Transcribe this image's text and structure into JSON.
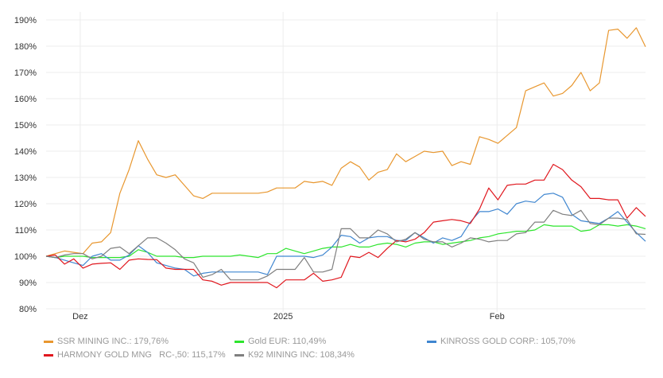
{
  "chart_data": {
    "type": "line",
    "xlabel": "",
    "ylabel": "",
    "ylim": [
      80,
      190
    ],
    "y_ticks": [
      "80%",
      "90%",
      "100%",
      "110%",
      "120%",
      "130%",
      "140%",
      "150%",
      "160%",
      "170%",
      "180%",
      "190%"
    ],
    "y_tick_values": [
      80,
      90,
      100,
      110,
      120,
      130,
      140,
      150,
      160,
      170,
      180,
      190
    ],
    "x_ticks": [
      {
        "label": "Dez",
        "index": 3.7
      },
      {
        "label": "2025",
        "index": 25.7
      },
      {
        "label": "Feb",
        "index": 48.9
      }
    ],
    "grid": true,
    "legend_position": "bottom",
    "series": [
      {
        "name": "SSR MINING INC.",
        "legend": "SSR MINING INC.: 179,76%",
        "color": "#e8972f",
        "values": [
          100,
          101,
          102,
          101.5,
          101,
          105,
          105.5,
          109,
          124,
          133,
          144,
          137,
          131,
          130,
          131,
          127,
          123,
          122,
          124,
          124,
          124,
          124,
          124,
          124,
          124.5,
          126,
          126,
          126,
          128.5,
          128,
          128.5,
          127,
          133.5,
          136,
          134,
          129,
          132,
          133,
          139,
          136,
          138,
          140,
          139.5,
          140,
          134.5,
          136,
          135,
          145.5,
          144.5,
          143,
          146,
          149,
          163,
          164.5,
          166,
          161,
          162,
          165,
          170,
          163,
          166,
          186,
          186.5,
          183,
          187,
          179.76
        ]
      },
      {
        "name": "Gold EUR",
        "legend": "Gold EUR: 110,49%",
        "color": "#2de52d",
        "values": [
          100,
          99.5,
          100,
          100,
          100,
          99.5,
          99.5,
          99.5,
          99.5,
          100,
          102.5,
          101.5,
          100,
          100,
          100,
          99.5,
          99.5,
          100,
          100,
          100,
          100,
          100.5,
          100,
          99.5,
          101,
          101,
          103,
          102,
          101,
          102,
          103,
          103.5,
          103.5,
          104.5,
          103.5,
          103.5,
          104.5,
          105,
          104.5,
          103.5,
          105,
          105.5,
          105.5,
          104.5,
          105,
          105.5,
          106,
          107,
          107.5,
          108.5,
          109,
          109.5,
          109.5,
          110,
          112,
          111.5,
          111.5,
          111.5,
          109.5,
          110,
          112,
          112,
          111.5,
          112,
          111.5,
          110.49
        ]
      },
      {
        "name": "KINROSS GOLD CORP.",
        "legend": "KINROSS GOLD CORP.: 105,70%",
        "color": "#3f86d0",
        "values": [
          100,
          99.5,
          98.5,
          97.5,
          96.5,
          100,
          101,
          98.5,
          98.5,
          100.5,
          104,
          101.5,
          97.5,
          96.5,
          95.5,
          95,
          92.5,
          93.5,
          94,
          94,
          94,
          94,
          94,
          94,
          93,
          100,
          100,
          100,
          100,
          99.5,
          100.5,
          103.5,
          108,
          107.5,
          105,
          107,
          107.5,
          107.5,
          106,
          106,
          109,
          107,
          105,
          107,
          106,
          107.5,
          113,
          117,
          117,
          118,
          116,
          120,
          121,
          120.5,
          123.5,
          124,
          122.5,
          116,
          113.5,
          113,
          112.5,
          114.5,
          117,
          113,
          109,
          105.7
        ]
      },
      {
        "name": "HARMONY GOLD MNG   RC-,50",
        "legend": "HARMONY GOLD MNG   RC-,50: 115,17%",
        "color": "#e0171e",
        "values": [
          100,
          100.5,
          97,
          99,
          95.5,
          97,
          97.3,
          97.5,
          95,
          98.5,
          99,
          98.8,
          98.7,
          95.5,
          95,
          95,
          95,
          91,
          90.5,
          89,
          90,
          90,
          90,
          90,
          90,
          88,
          91,
          91,
          91,
          93.5,
          90.5,
          91,
          92,
          100,
          99.5,
          101.5,
          99.5,
          103,
          106,
          105.5,
          106.5,
          109,
          113,
          113.5,
          114,
          113.5,
          112.5,
          118,
          126,
          121.5,
          127,
          127.5,
          127.5,
          129,
          129,
          135,
          133,
          129,
          126.5,
          122,
          122,
          121.5,
          121.5,
          114.5,
          118.5,
          115.17
        ]
      },
      {
        "name": "K92 MINING INC",
        "legend": "K92 MINING INC: 108,34%",
        "color": "#7f7f7f",
        "values": [
          100,
          99.5,
          100.5,
          101,
          101,
          99,
          100,
          103,
          103.5,
          101,
          104,
          107,
          107,
          105,
          102.5,
          99,
          97.5,
          92,
          93,
          95,
          91,
          91,
          91,
          91,
          92.5,
          95,
          95,
          95,
          99.5,
          94,
          94,
          95,
          110.5,
          110.5,
          107,
          107,
          110,
          108.5,
          105.5,
          106.5,
          109,
          106.5,
          105.5,
          105.5,
          103.5,
          105,
          107,
          106.5,
          105.5,
          106,
          106,
          108.5,
          109,
          113,
          113,
          117.5,
          116,
          115.5,
          117.5,
          112.5,
          112,
          114.5,
          114.5,
          114,
          108.5,
          108.34
        ]
      }
    ]
  }
}
